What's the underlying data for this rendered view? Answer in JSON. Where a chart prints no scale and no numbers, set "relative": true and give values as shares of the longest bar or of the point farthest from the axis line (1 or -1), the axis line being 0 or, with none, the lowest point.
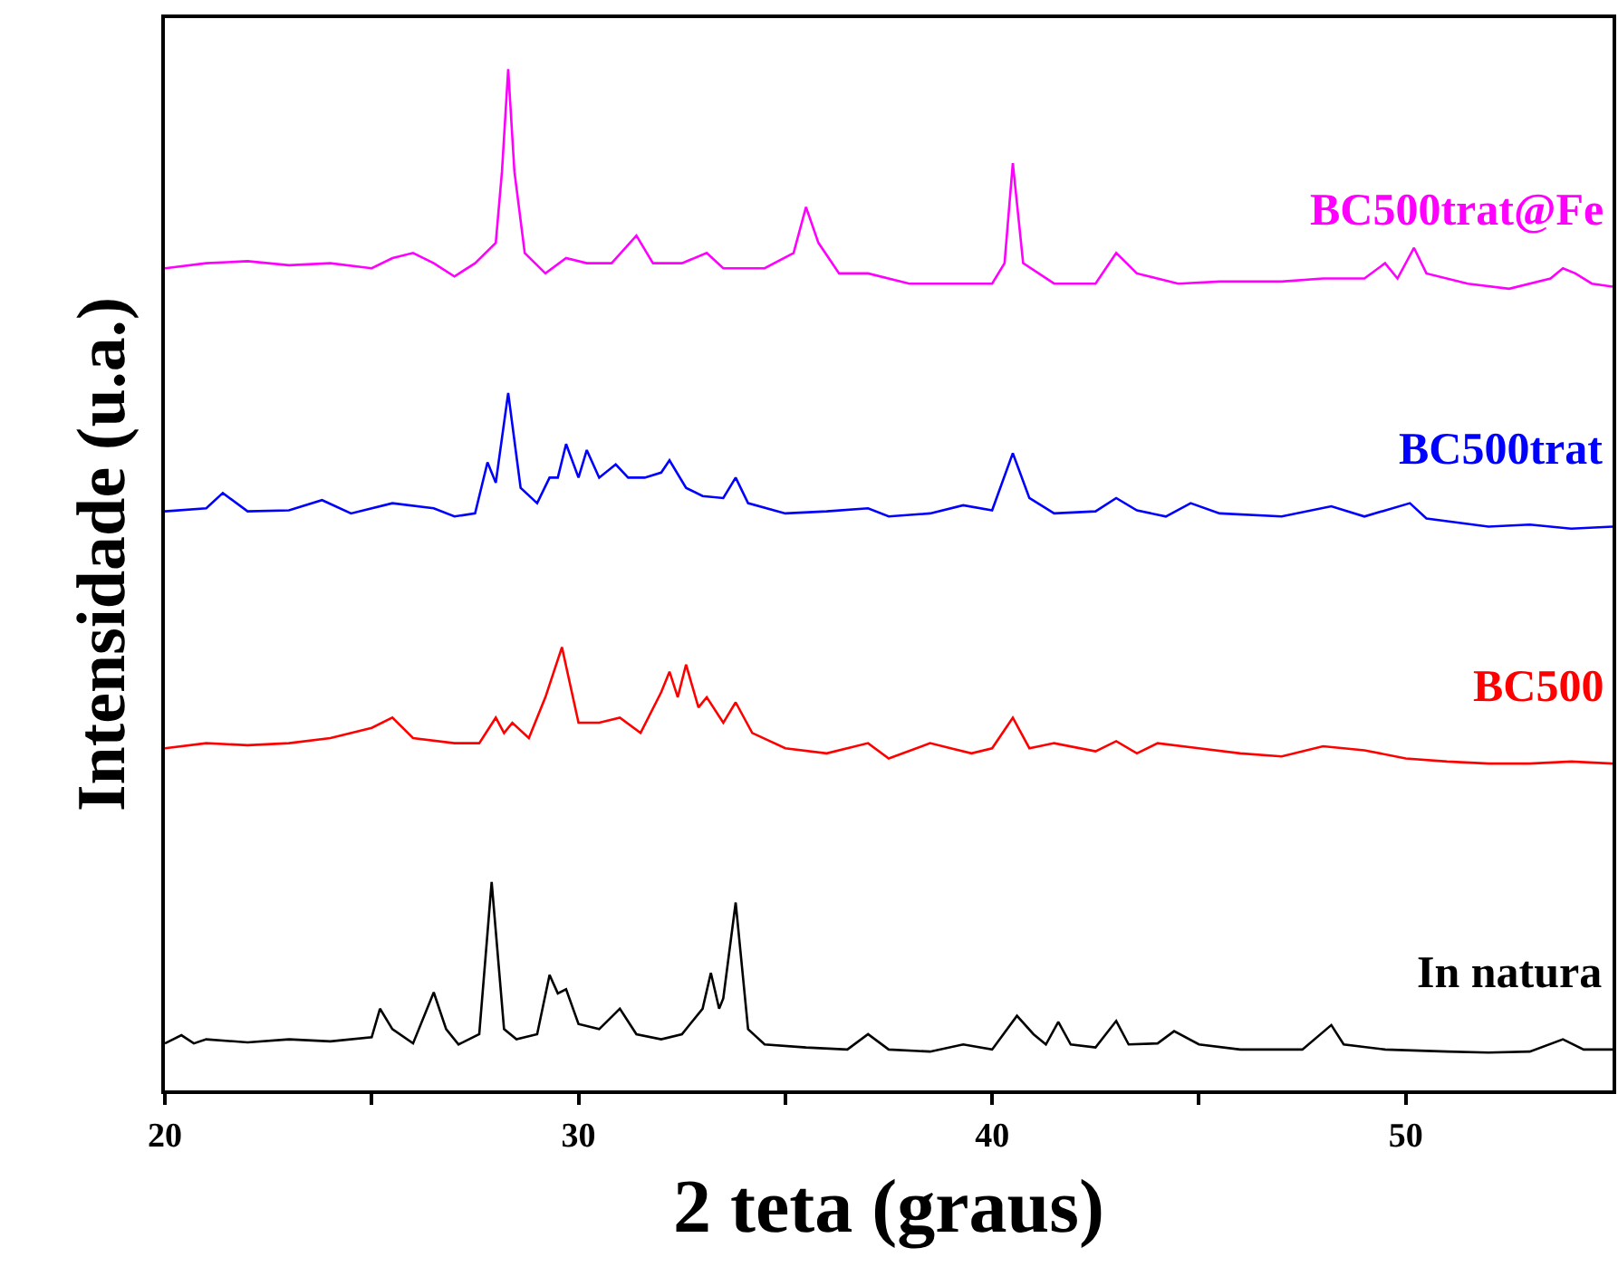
{
  "chart_data": {
    "type": "line",
    "relative": true,
    "xlabel": "2 teta (graus)",
    "ylabel": "Intensidade (u.a.)",
    "xlim": [
      20,
      55
    ],
    "xticks": [
      20,
      {
        "value": 25,
        "label": null
      },
      30,
      {
        "value": 35,
        "label": null
      },
      40,
      {
        "value": 45,
        "label": null
      },
      50
    ],
    "legend": false,
    "marker": "none",
    "line_style": "solid",
    "tick_labels": "x",
    "series": [
      {
        "name": "In natura",
        "color": "#000000",
        "x": [
          20,
          20.4,
          20.7,
          21,
          22,
          23,
          24,
          25,
          25.2,
          25.5,
          26,
          26.5,
          26.8,
          27.1,
          27.6,
          27.9,
          28.2,
          28.5,
          29,
          29.3,
          29.5,
          29.7,
          30,
          30.5,
          31,
          31.4,
          32,
          32.5,
          33,
          33.2,
          33.4,
          33.5,
          33.8,
          34.1,
          34.5,
          35.5,
          36.5,
          37,
          37.5,
          38.5,
          39.3,
          40,
          40.6,
          41,
          41.3,
          41.6,
          41.9,
          42.5,
          43,
          43.3,
          44,
          44.4,
          45,
          46,
          47.5,
          48.2,
          48.5,
          49.5,
          51,
          52,
          53,
          53.8,
          54.3,
          55
        ],
        "values": [
          0.046,
          0.054,
          0.046,
          0.05,
          0.047,
          0.05,
          0.048,
          0.052,
          0.08,
          0.06,
          0.046,
          0.096,
          0.06,
          0.045,
          0.055,
          0.204,
          0.06,
          0.05,
          0.055,
          0.113,
          0.095,
          0.099,
          0.065,
          0.06,
          0.08,
          0.055,
          0.05,
          0.055,
          0.08,
          0.115,
          0.08,
          0.09,
          0.184,
          0.06,
          0.045,
          0.042,
          0.04,
          0.055,
          0.04,
          0.038,
          0.045,
          0.04,
          0.073,
          0.055,
          0.045,
          0.067,
          0.045,
          0.042,
          0.068,
          0.045,
          0.046,
          0.058,
          0.045,
          0.04,
          0.04,
          0.064,
          0.045,
          0.04,
          0.038,
          0.037,
          0.038,
          0.05,
          0.04,
          0.04
        ]
      },
      {
        "name": "BC500",
        "color": "#ff0000",
        "x": [
          20,
          21,
          22,
          23,
          24,
          25,
          25.5,
          26,
          27,
          27.6,
          28,
          28.2,
          28.4,
          28.8,
          29.2,
          29.6,
          30,
          30.5,
          31,
          31.5,
          32,
          32.2,
          32.4,
          32.6,
          32.9,
          33.1,
          33.5,
          33.8,
          34.2,
          35,
          36,
          37,
          37.5,
          38.5,
          39,
          39.5,
          40,
          40.5,
          40.9,
          41.5,
          42.5,
          43,
          43.5,
          44,
          45,
          46,
          47,
          48,
          49,
          50,
          51,
          52,
          53,
          54,
          55
        ],
        "values": [
          0.335,
          0.34,
          0.338,
          0.34,
          0.345,
          0.355,
          0.365,
          0.345,
          0.34,
          0.34,
          0.365,
          0.35,
          0.36,
          0.345,
          0.385,
          0.434,
          0.36,
          0.36,
          0.365,
          0.35,
          0.39,
          0.41,
          0.385,
          0.417,
          0.375,
          0.385,
          0.36,
          0.38,
          0.35,
          0.335,
          0.33,
          0.34,
          0.325,
          0.34,
          0.335,
          0.33,
          0.335,
          0.365,
          0.335,
          0.34,
          0.332,
          0.342,
          0.33,
          0.34,
          0.335,
          0.33,
          0.327,
          0.337,
          0.333,
          0.325,
          0.322,
          0.32,
          0.32,
          0.322,
          0.32
        ]
      },
      {
        "name": "BC500trat",
        "color": "#0000ff",
        "x": [
          20,
          21,
          21.4,
          22,
          23,
          23.8,
          24.5,
          25.5,
          26.5,
          27,
          27.5,
          27.8,
          28,
          28.3,
          28.6,
          29,
          29.3,
          29.5,
          29.7,
          30,
          30.2,
          30.5,
          30.9,
          31.2,
          31.6,
          32,
          32.2,
          32.6,
          33,
          33.5,
          33.8,
          34.1,
          35,
          36,
          37,
          37.5,
          38.5,
          39.3,
          40,
          40.5,
          40.9,
          41.5,
          42.5,
          43,
          43.5,
          44.2,
          44.8,
          45.5,
          47,
          48.2,
          49,
          50.1,
          50.5,
          52,
          53,
          54,
          55
        ],
        "values": [
          0.567,
          0.57,
          0.585,
          0.567,
          0.568,
          0.578,
          0.565,
          0.575,
          0.57,
          0.562,
          0.565,
          0.615,
          0.595,
          0.683,
          0.59,
          0.575,
          0.6,
          0.6,
          0.633,
          0.6,
          0.627,
          0.6,
          0.613,
          0.6,
          0.6,
          0.605,
          0.617,
          0.59,
          0.582,
          0.58,
          0.6,
          0.575,
          0.565,
          0.567,
          0.57,
          0.562,
          0.565,
          0.573,
          0.568,
          0.624,
          0.58,
          0.565,
          0.567,
          0.58,
          0.568,
          0.562,
          0.575,
          0.565,
          0.562,
          0.572,
          0.562,
          0.575,
          0.56,
          0.552,
          0.554,
          0.55,
          0.552
        ]
      },
      {
        "name": "BC500trat@Fe",
        "color": "#ff00ff",
        "x": [
          20,
          21,
          22,
          23,
          24,
          25,
          25.5,
          26,
          26.5,
          27,
          27.5,
          28,
          28.15,
          28.3,
          28.45,
          28.7,
          29.2,
          29.7,
          30.2,
          30.8,
          31.4,
          31.8,
          32.5,
          33.1,
          33.5,
          34.5,
          35.2,
          35.5,
          35.8,
          36.3,
          37,
          38,
          39,
          40,
          40.3,
          40.5,
          40.75,
          41.5,
          42.5,
          43,
          43.5,
          44.5,
          45.5,
          47,
          48,
          49,
          49.5,
          49.8,
          50.2,
          50.5,
          51.5,
          52.5,
          53.5,
          53.8,
          54.1,
          54.5,
          55
        ],
        "values": [
          0.805,
          0.81,
          0.812,
          0.808,
          0.81,
          0.805,
          0.815,
          0.82,
          0.81,
          0.797,
          0.81,
          0.83,
          0.9,
          1.0,
          0.9,
          0.82,
          0.8,
          0.815,
          0.81,
          0.81,
          0.837,
          0.81,
          0.81,
          0.82,
          0.805,
          0.805,
          0.82,
          0.865,
          0.83,
          0.8,
          0.8,
          0.79,
          0.79,
          0.79,
          0.81,
          0.908,
          0.81,
          0.79,
          0.79,
          0.82,
          0.8,
          0.79,
          0.792,
          0.792,
          0.795,
          0.795,
          0.81,
          0.795,
          0.825,
          0.8,
          0.79,
          0.785,
          0.795,
          0.805,
          0.8,
          0.79,
          0.787
        ]
      }
    ]
  }
}
